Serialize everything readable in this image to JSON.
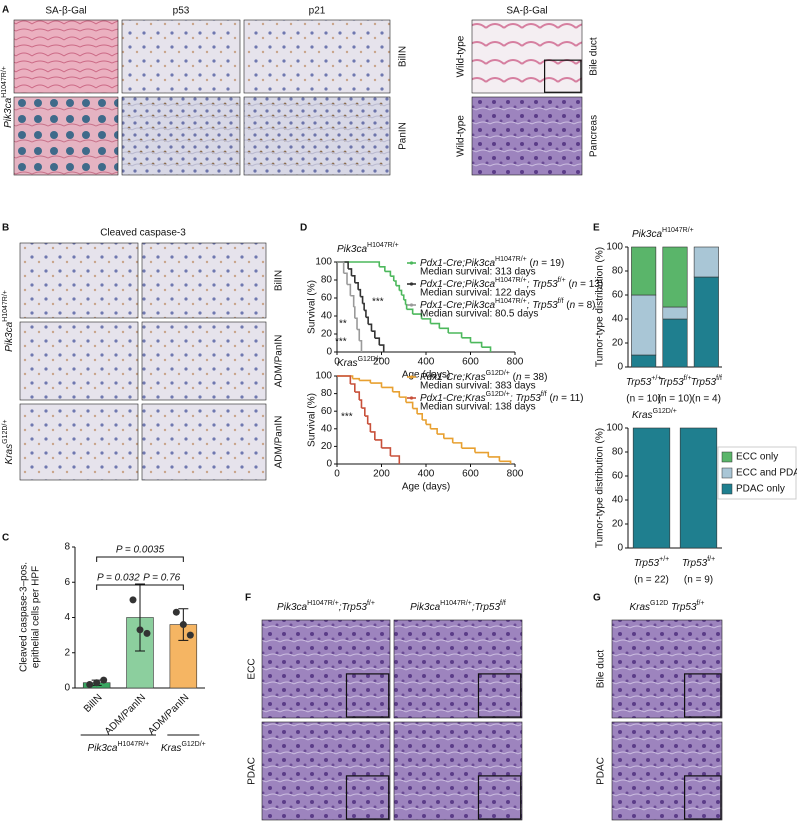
{
  "figure": {
    "panel_labels": [
      "A",
      "B",
      "C",
      "D",
      "E",
      "F",
      "G"
    ],
    "a": {
      "headers": [
        "SA-β-Gal",
        "p53",
        "p21"
      ],
      "genotype": [
        {
          "t": "Pik3ca",
          "i": true
        },
        {
          "t": "H1047R/+",
          "sup": true
        }
      ],
      "tissues": [
        "BilIN",
        "PanIN"
      ],
      "control_header": "SA-β-Gal",
      "control_genotype": "Wild-type",
      "control_tissues": [
        "Bile duct",
        "Pancreas"
      ]
    },
    "b": {
      "header": "Cleaved caspase-3",
      "genotypes": [
        [
          {
            "t": "Pik3ca",
            "i": true
          },
          {
            "t": "H1047R/+",
            "sup": true
          }
        ],
        [
          {
            "t": "Kras",
            "i": true
          },
          {
            "t": "G12D/+",
            "sup": true
          }
        ]
      ],
      "tissues": [
        "BilIN",
        "ADM/PanIN",
        "ADM/PanIN"
      ]
    },
    "f": {
      "titles": [
        [
          {
            "t": "Pik3ca",
            "i": true
          },
          {
            "t": "H1047R/+",
            "sup": true
          },
          {
            "t": ";Trp53",
            "i": true
          },
          {
            "t": "f/+",
            "sup": true
          }
        ],
        [
          {
            "t": "Pik3ca",
            "i": true
          },
          {
            "t": "H1047R/+",
            "sup": true
          },
          {
            "t": ";Trp53",
            "i": true
          },
          {
            "t": "f/f",
            "sup": true
          }
        ]
      ],
      "rows": [
        "ECC",
        "PDAC"
      ]
    },
    "g": {
      "title": [
        {
          "t": "Kras",
          "i": true
        },
        {
          "t": "G12D",
          "sup": true
        },
        {
          "t": " Trp53",
          "i": true
        },
        {
          "t": "f/+",
          "sup": true
        }
      ],
      "rows": [
        "Bile duct",
        "PDAC"
      ]
    }
  },
  "chart_data": [
    {
      "type": "bar",
      "categories": [
        "BilIN",
        "ADM/PanIN",
        "ADM/PanIN"
      ],
      "values": [
        0.3,
        4.0,
        3.6
      ],
      "errors": [
        0.15,
        1.9,
        0.9
      ],
      "points": [
        [
          0.2,
          0.3,
          0.45
        ],
        [
          5.0,
          3.3,
          3.1
        ],
        [
          4.3,
          3.6,
          3.0
        ]
      ],
      "colors": [
        "#3aa862",
        "#8ccf9e",
        "#f5b563"
      ],
      "ylim": [
        0,
        8
      ],
      "yticks": [
        0,
        2,
        4,
        6,
        8
      ],
      "ylabel": [
        "Cleaved caspase-3–pos.",
        "epithelial cells per HPF"
      ],
      "comparisons": [
        {
          "pair": [
            0,
            2
          ],
          "label": "P = 0.0035"
        },
        {
          "pair": [
            0,
            1
          ],
          "label": "P = 0.032"
        },
        {
          "pair": [
            1,
            2
          ],
          "label": "P = 0.76"
        }
      ],
      "groups": [
        {
          "label": [
            {
              "t": "Pik3ca",
              "i": true
            },
            {
              "t": "H1047R/+",
              "sup": true
            }
          ],
          "span": [
            0,
            1
          ]
        },
        {
          "label": [
            {
              "t": "Kras",
              "i": true
            },
            {
              "t": "G12D/+",
              "sup": true
            }
          ],
          "span": [
            2,
            2
          ]
        }
      ]
    },
    {
      "type": "step",
      "title": [
        {
          "t": "Pik3ca",
          "i": true
        },
        {
          "t": "H1047R/+",
          "sup": true
        }
      ],
      "ylabel": "Survival (%)",
      "xlabel": "Age (days)",
      "xlim": [
        0,
        800
      ],
      "xticks": [
        0,
        200,
        400,
        600,
        800
      ],
      "ylim": [
        0,
        100
      ],
      "yticks": [
        0,
        20,
        40,
        60,
        80,
        100
      ],
      "series": [
        {
          "name_parts": [
            {
              "t": "Pdx1-Cre;Pik3ca",
              "i": true
            },
            {
              "t": "H1047R/+",
              "sup": true
            },
            {
              "t": " ("
            },
            {
              "t": "n",
              "i": true
            },
            {
              "t": " = 19)"
            }
          ],
          "median": "Median survival: 313 days",
          "color": "#4cb85c",
          "x": [
            0,
            190,
            215,
            240,
            255,
            265,
            280,
            290,
            300,
            308,
            313,
            340,
            380,
            420,
            460,
            500,
            560,
            600,
            650,
            690
          ],
          "values": [
            100,
            94.7,
            89.5,
            84.2,
            78.9,
            73.7,
            68.4,
            63.2,
            57.9,
            52.6,
            47.4,
            42.1,
            36.8,
            31.6,
            26.3,
            21.1,
            15.8,
            10.5,
            5.3,
            0
          ]
        },
        {
          "name_parts": [
            {
              "t": "Pdx1-Cre;Pik3ca",
              "i": true
            },
            {
              "t": "H1047R/+",
              "sup": true
            },
            {
              "t": "; Trp53",
              "i": true
            },
            {
              "t": "f/+",
              "sup": true
            },
            {
              "t": " ("
            },
            {
              "t": "n",
              "i": true
            },
            {
              "t": " = 13)"
            }
          ],
          "median": "Median survival: 122 days",
          "color": "#333333",
          "x": [
            0,
            50,
            65,
            80,
            95,
            105,
            115,
            122,
            130,
            140,
            155,
            170,
            190,
            210
          ],
          "values": [
            100,
            92.3,
            84.6,
            76.9,
            69.2,
            61.5,
            53.8,
            46.2,
            38.5,
            30.8,
            23.1,
            15.4,
            7.7,
            0
          ]
        },
        {
          "name_parts": [
            {
              "t": "Pdx1-Cre;Pik3ca",
              "i": true
            },
            {
              "t": "H1047R/+",
              "sup": true
            },
            {
              "t": "; Trp53",
              "i": true
            },
            {
              "t": "f/f",
              "sup": true
            },
            {
              "t": " ("
            },
            {
              "t": "n",
              "i": true
            },
            {
              "t": " = 8)"
            }
          ],
          "median": "Median survival: 80.5 days",
          "color": "#9a9a9a",
          "x": [
            0,
            30,
            45,
            60,
            75,
            80,
            90,
            100,
            110
          ],
          "values": [
            100,
            87.5,
            75,
            62.5,
            50,
            37.5,
            25,
            12.5,
            0
          ]
        }
      ],
      "annotations": [
        "***",
        "**",
        "***"
      ]
    },
    {
      "type": "step",
      "title": [
        {
          "t": "Kras",
          "i": true
        },
        {
          "t": "G12D/+",
          "sup": true
        }
      ],
      "ylabel": "Survival (%)",
      "xlabel": "Age (days)",
      "xlim": [
        0,
        800
      ],
      "xticks": [
        0,
        200,
        400,
        600,
        800
      ],
      "ylim": [
        0,
        100
      ],
      "yticks": [
        0,
        20,
        40,
        60,
        80,
        100
      ],
      "series": [
        {
          "name_parts": [
            {
              "t": "Pdx1-Cre;Kras",
              "i": true
            },
            {
              "t": "G12D/+",
              "sup": true
            },
            {
              "t": " ("
            },
            {
              "t": "n",
              "i": true
            },
            {
              "t": " = 38)"
            }
          ],
          "median": "Median survival: 383 days",
          "color": "#e8a030",
          "x": [
            0,
            70,
            100,
            150,
            200,
            250,
            280,
            310,
            340,
            360,
            383,
            400,
            420,
            450,
            480,
            520,
            560,
            620,
            680,
            730,
            780
          ],
          "values": [
            100,
            97,
            95,
            92,
            87,
            82,
            76,
            70,
            63,
            57,
            50,
            45,
            40,
            34,
            29,
            24,
            18,
            13,
            8,
            3,
            0
          ]
        },
        {
          "name_parts": [
            {
              "t": "Pdx1-Cre;Kras",
              "i": true
            },
            {
              "t": "G12D/+",
              "sup": true
            },
            {
              "t": "; Trp53",
              "i": true
            },
            {
              "t": "f/f",
              "sup": true
            },
            {
              "t": " ("
            },
            {
              "t": "n",
              "i": true
            },
            {
              "t": " = 11)"
            }
          ],
          "median": "Median survival: 138 days",
          "color": "#c8503a",
          "x": [
            0,
            60,
            80,
            100,
            110,
            125,
            138,
            150,
            170,
            200,
            240,
            280
          ],
          "values": [
            100,
            90.9,
            81.8,
            72.7,
            63.6,
            54.5,
            45.5,
            36.4,
            27.3,
            18.2,
            9.1,
            0
          ]
        }
      ],
      "annotations": [
        "***"
      ]
    },
    {
      "type": "stacked_bar",
      "title": [
        {
          "t": "Pik3ca",
          "i": true
        },
        {
          "t": "H1047R/+",
          "sup": true
        }
      ],
      "ylabel": "Tumor-type distribution (%)",
      "gene": "Trp53",
      "categories": [
        "+/+",
        "f/+",
        "f/f"
      ],
      "n_labels": [
        "(n = 10)",
        "(n = 10)",
        "(n = 4)"
      ],
      "ylim": [
        0,
        100
      ],
      "yticks": [
        0,
        20,
        40,
        60,
        80,
        100
      ],
      "legend": true,
      "series": [
        {
          "name": "PDAC only",
          "color": "#1f7f8f",
          "values": [
            10,
            40,
            75
          ]
        },
        {
          "name": "ECC and PDAC",
          "color": "#a9c6d6",
          "values": [
            50,
            10,
            25
          ]
        },
        {
          "name": "ECC only",
          "color": "#5ab56a",
          "values": [
            40,
            50,
            0
          ]
        }
      ]
    },
    {
      "type": "stacked_bar",
      "title": [
        {
          "t": "Kras",
          "i": true
        },
        {
          "t": "G12D/+",
          "sup": true
        }
      ],
      "ylabel": "Tumor-type distribution (%)",
      "gene": "Trp53",
      "categories": [
        "+/+",
        "f/+"
      ],
      "n_labels": [
        "(n = 22)",
        "(n = 9)"
      ],
      "ylim": [
        0,
        100
      ],
      "yticks": [
        0,
        20,
        40,
        60,
        80,
        100
      ],
      "legend": false,
      "series": [
        {
          "color": "#1f7f8f",
          "values": [
            100,
            100
          ]
        },
        {
          "color": "#a9c6d6",
          "values": [
            0,
            0
          ]
        },
        {
          "color": "#5ab56a",
          "values": [
            0,
            0
          ]
        }
      ]
    }
  ]
}
